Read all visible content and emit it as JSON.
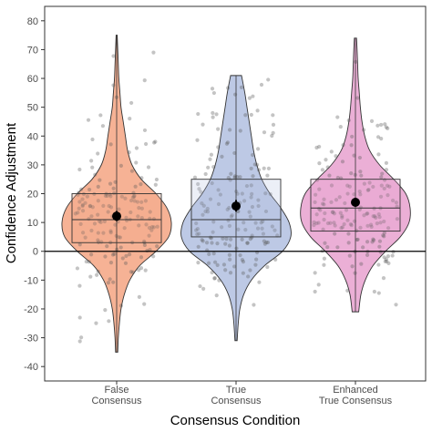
{
  "chart_data": {
    "type": "violin",
    "xlabel": "Consensus Condition",
    "ylabel": "Confidence Adjustment",
    "ylim": [
      -45,
      85
    ],
    "yticks": [
      -40,
      -30,
      -20,
      -10,
      0,
      10,
      20,
      30,
      40,
      50,
      60,
      70,
      80
    ],
    "grid": false,
    "reference_line_y": 0,
    "groups": [
      {
        "label_lines": [
          "False",
          "Consensus"
        ],
        "color": "#f4a582",
        "violin_min": -35,
        "violin_max": 75,
        "box": {
          "q1": 3,
          "median": 11,
          "q3": 20
        },
        "whisker": [
          -35,
          75
        ],
        "mean": 12.2,
        "mean_ci": [
          10.5,
          14.0
        ],
        "violin_shape": [
          [
            -35,
            0.02
          ],
          [
            -30,
            0.03
          ],
          [
            -25,
            0.05
          ],
          [
            -20,
            0.08
          ],
          [
            -15,
            0.14
          ],
          [
            -10,
            0.24
          ],
          [
            -5,
            0.42
          ],
          [
            0,
            0.72
          ],
          [
            5,
            0.95
          ],
          [
            10,
            1.0
          ],
          [
            15,
            0.92
          ],
          [
            20,
            0.72
          ],
          [
            25,
            0.45
          ],
          [
            30,
            0.28
          ],
          [
            35,
            0.2
          ],
          [
            40,
            0.16
          ],
          [
            45,
            0.12
          ],
          [
            50,
            0.08
          ],
          [
            55,
            0.06
          ],
          [
            60,
            0.04
          ],
          [
            65,
            0.03
          ],
          [
            70,
            0.02
          ],
          [
            75,
            0.01
          ]
        ]
      },
      {
        "label_lines": [
          "True",
          "Consensus"
        ],
        "color": "#b2bfe0",
        "violin_min": -31,
        "violin_max": 61,
        "box": {
          "q1": 5,
          "median": 11,
          "q3": 25
        },
        "whisker": [
          -31,
          61
        ],
        "mean": 15.7,
        "mean_ci": [
          13.8,
          17.8
        ],
        "violin_shape": [
          [
            -31,
            0.02
          ],
          [
            -25,
            0.04
          ],
          [
            -20,
            0.07
          ],
          [
            -15,
            0.14
          ],
          [
            -10,
            0.28
          ],
          [
            -5,
            0.52
          ],
          [
            0,
            0.85
          ],
          [
            5,
            1.0
          ],
          [
            10,
            0.97
          ],
          [
            15,
            0.82
          ],
          [
            20,
            0.62
          ],
          [
            25,
            0.47
          ],
          [
            30,
            0.38
          ],
          [
            35,
            0.32
          ],
          [
            40,
            0.28
          ],
          [
            45,
            0.24
          ],
          [
            50,
            0.2
          ],
          [
            55,
            0.16
          ],
          [
            61,
            0.1
          ]
        ]
      },
      {
        "label_lines": [
          "Enhanced",
          "True Consensus"
        ],
        "color": "#e7a1cf",
        "violin_min": -21,
        "violin_max": 74,
        "box": {
          "q1": 7,
          "median": 15,
          "q3": 25
        },
        "whisker": [
          -21,
          74
        ],
        "mean": 17.0,
        "mean_ci": [
          15.5,
          18.6
        ],
        "violin_shape": [
          [
            -21,
            0.06
          ],
          [
            -15,
            0.1
          ],
          [
            -10,
            0.18
          ],
          [
            -5,
            0.32
          ],
          [
            0,
            0.55
          ],
          [
            5,
            0.82
          ],
          [
            10,
            0.98
          ],
          [
            15,
            1.0
          ],
          [
            20,
            0.92
          ],
          [
            25,
            0.7
          ],
          [
            30,
            0.44
          ],
          [
            35,
            0.26
          ],
          [
            40,
            0.17
          ],
          [
            45,
            0.12
          ],
          [
            50,
            0.09
          ],
          [
            55,
            0.07
          ],
          [
            60,
            0.05
          ],
          [
            65,
            0.04
          ],
          [
            70,
            0.03
          ],
          [
            74,
            0.02
          ]
        ]
      }
    ]
  }
}
